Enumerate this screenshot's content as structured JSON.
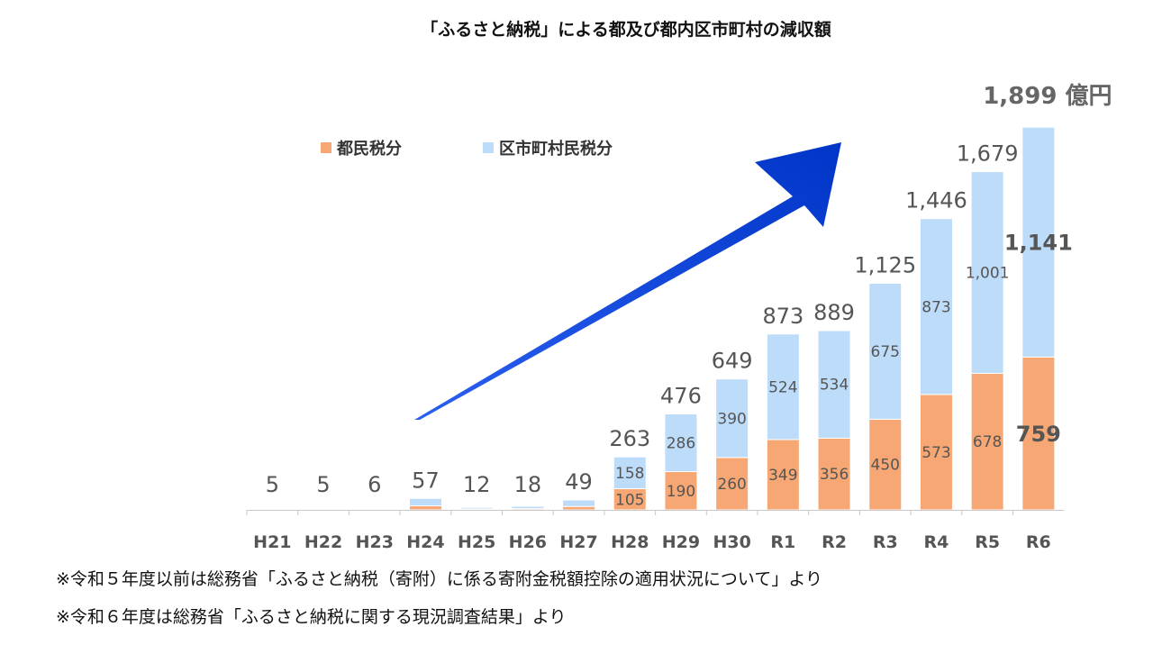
{
  "chart_data": {
    "type": "bar",
    "stacked": true,
    "title": "「ふるさと納税」による都及び都内区市町村の減収額",
    "categories": [
      "H21",
      "H22",
      "H23",
      "H24",
      "H25",
      "H26",
      "H27",
      "H28",
      "H29",
      "H30",
      "R1",
      "R2",
      "R3",
      "R4",
      "R5",
      "R6"
    ],
    "series": [
      {
        "name": "都民税分",
        "color": "#f7a774",
        "values": [
          2,
          2,
          2,
          20,
          4,
          6,
          17,
          105,
          190,
          260,
          349,
          356,
          450,
          573,
          678,
          759
        ],
        "labels": [
          "",
          "",
          "",
          "",
          "",
          "",
          "",
          "105",
          "190",
          "260",
          "349",
          "356",
          "450",
          "573",
          "678",
          "759"
        ]
      },
      {
        "name": "区市町村民税分",
        "color": "#bcdcfa",
        "values": [
          3,
          3,
          4,
          37,
          8,
          12,
          32,
          158,
          286,
          390,
          524,
          534,
          675,
          873,
          1001,
          1141
        ],
        "labels": [
          "",
          "",
          "",
          "",
          "",
          "",
          "",
          "158",
          "286",
          "390",
          "524",
          "534",
          "675",
          "873",
          "1,001",
          "1,141"
        ]
      }
    ],
    "totals": [
      5,
      5,
      6,
      57,
      12,
      18,
      49,
      263,
      476,
      649,
      873,
      889,
      1125,
      1446,
      1679,
      1899
    ],
    "total_labels": [
      "5",
      "5",
      "6",
      "57",
      "12",
      "18",
      "49",
      "263",
      "476",
      "649",
      "873",
      "889",
      "1,125",
      "1,446",
      "1,679",
      "1,899"
    ],
    "final_total_unit": "億円",
    "ylim": [
      0,
      1950
    ],
    "legend_position": "top-left",
    "grid": false,
    "arrow_color": "#0a3fd9"
  },
  "notes": [
    "※令和５年度以前は総務省「ふるさと納税（寄附）に係る寄附金税額控除の適用状況について」より",
    "※令和６年度は総務省「ふるさと納税に関する現況調査結果」より"
  ]
}
